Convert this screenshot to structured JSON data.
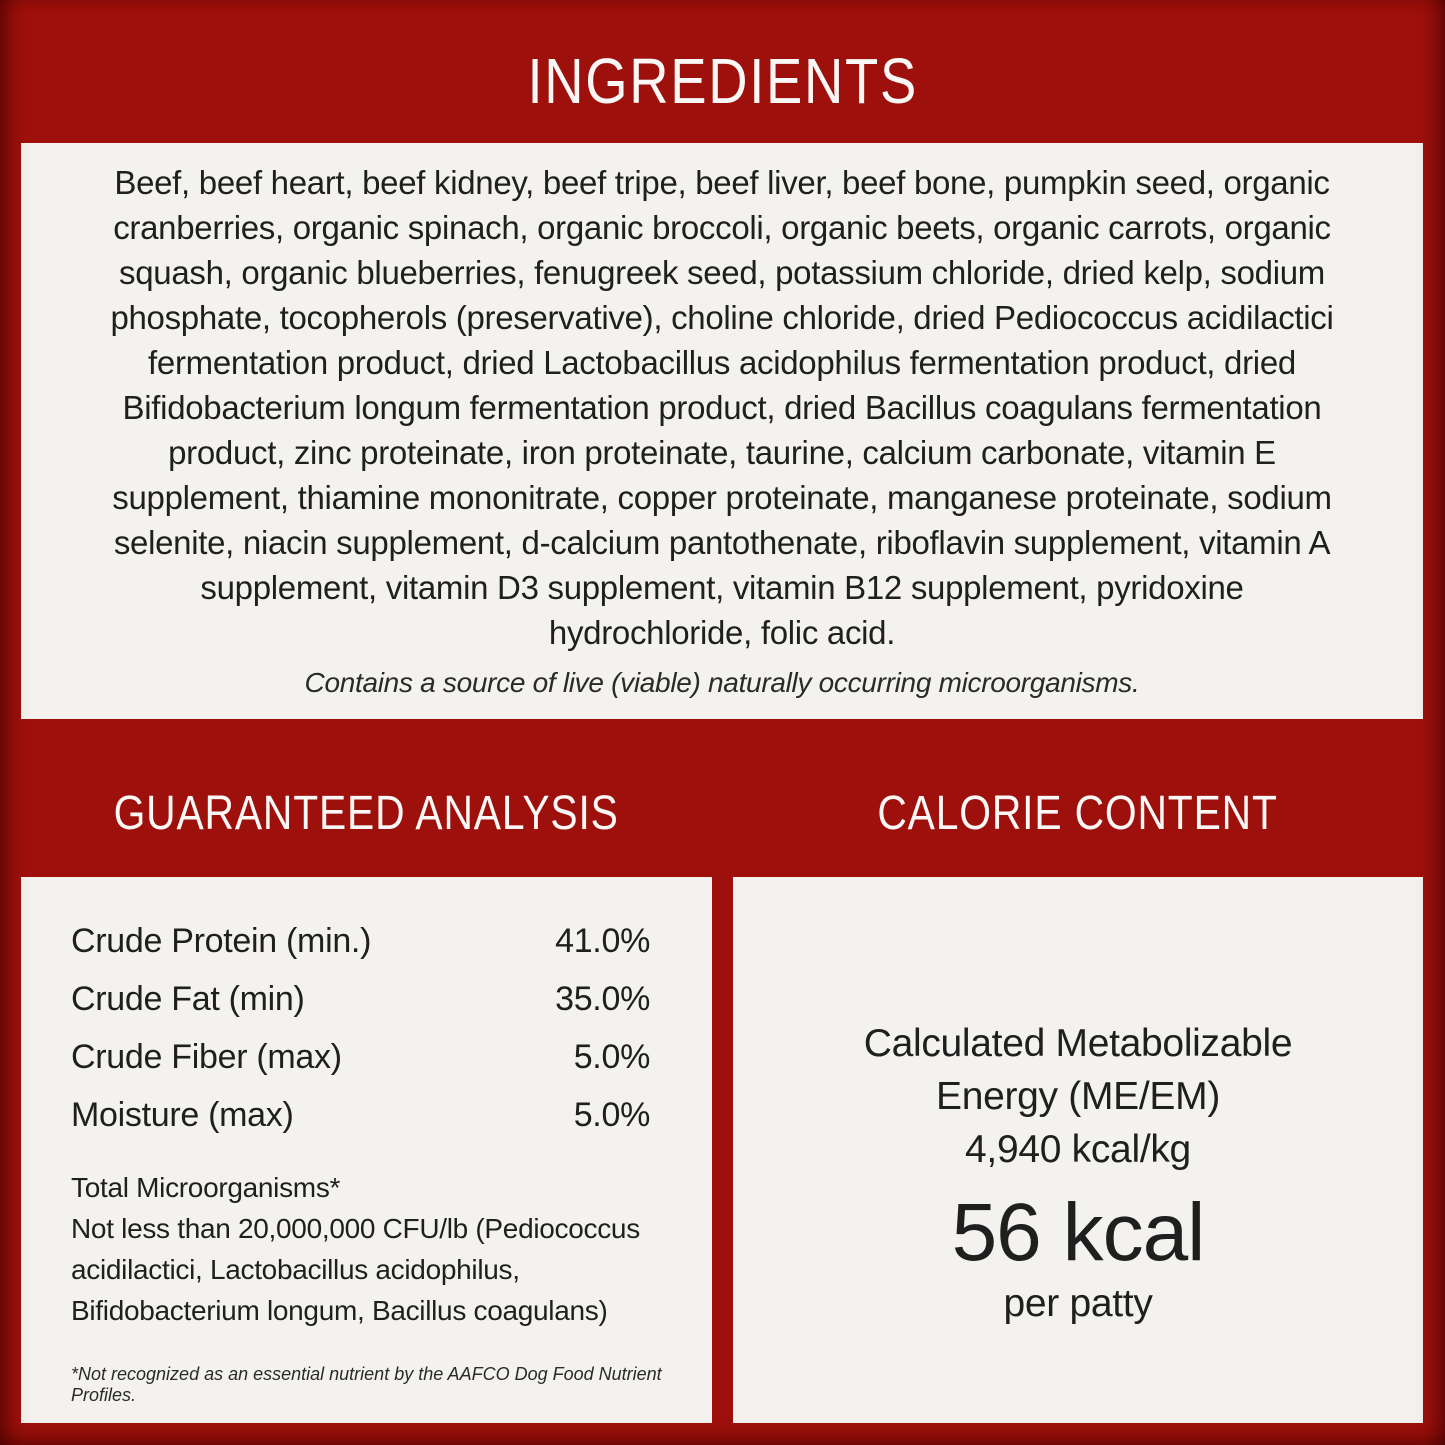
{
  "page": {
    "background_color": "#9E100B",
    "panel_color": "#F4F2EF",
    "body_text_color": "#1F1F1F",
    "heading_text_color": "#FAF8F6"
  },
  "ingredients": {
    "title": "INGREDIENTS",
    "text": "Beef, beef heart, beef kidney, beef tripe, beef liver, beef bone, pumpkin seed, organic cranberries, organic spinach, organic broccoli, organic beets, organic carrots, organic squash, organic blueberries, fenugreek seed, potassium chloride, dried kelp, sodium phosphate, tocopherols (preservative), choline chloride, dried Pediococcus acidilactici fermentation product, dried Lactobacillus acidophilus fermentation product, dried Bifidobacterium longum fermentation product, dried Bacillus coagulans fermentation product, zinc proteinate, iron proteinate, taurine, calcium carbonate, vitamin E supplement, thiamine mononitrate, copper proteinate, manganese proteinate, sodium selenite, niacin supplement, d-calcium pantothenate, riboflavin supplement, vitamin A supplement, vitamin D3 supplement, vitamin B12 supplement, pyridoxine hydrochloride, folic acid.",
    "note": "Contains a source of live (viable) naturally occurring microorganisms."
  },
  "guaranteed_analysis": {
    "title": "GUARANTEED ANALYSIS",
    "rows": [
      {
        "label": "Crude Protein (min.)",
        "value": "41.0%"
      },
      {
        "label": "Crude Fat (min)",
        "value": "35.0%"
      },
      {
        "label": "Crude Fiber (max)",
        "value": "5.0%"
      },
      {
        "label": "Moisture (max)",
        "value": "5.0%"
      }
    ],
    "microorganisms_title": "Total Microorganisms*",
    "microorganisms_text": "Not less than 20,000,000 CFU/lb (Pediococcus acidilactici, Lactobacillus acidophilus, Bifidobacterium longum, Bacillus coagulans)",
    "footnote": "*Not recognized as an essential nutrient by the AAFCO Dog Food Nutrient Profiles."
  },
  "calorie_content": {
    "title": "CALORIE CONTENT",
    "me_label": "Calculated Metabolizable Energy (ME/EM)",
    "me_value": "4,940 kcal/kg",
    "kcal_value": "56 kcal",
    "kcal_unit": "per patty"
  }
}
